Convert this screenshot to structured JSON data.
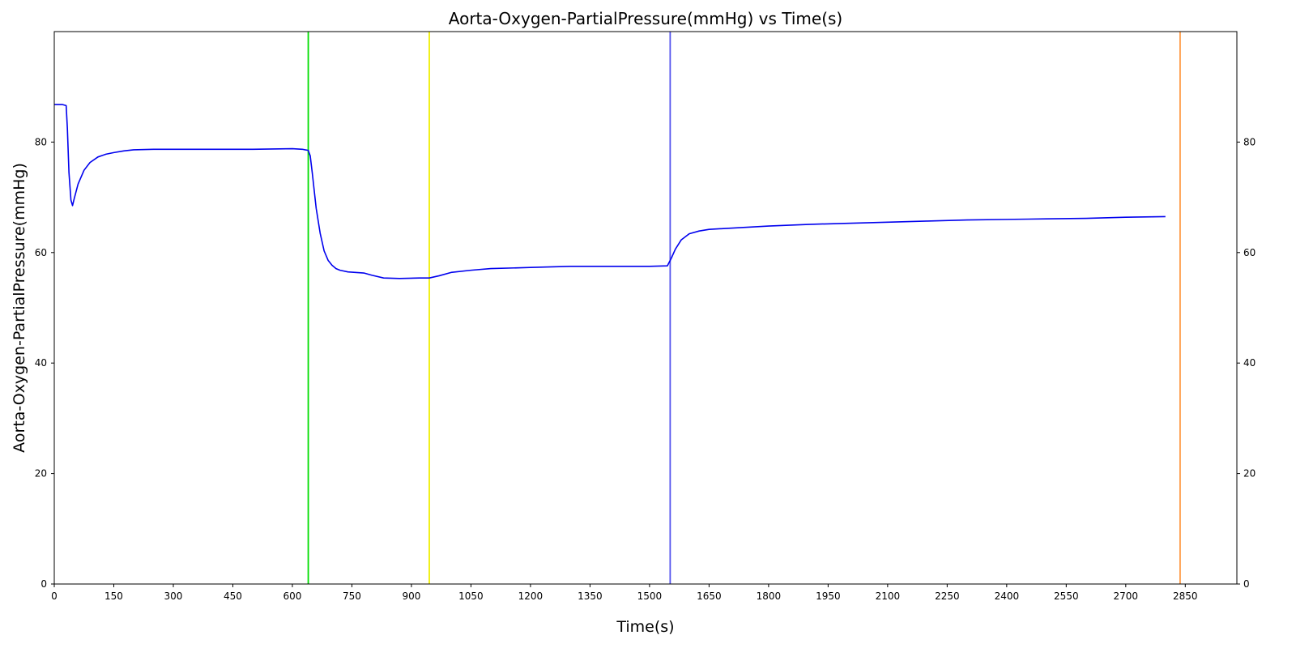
{
  "chart_data": {
    "type": "line",
    "title": "Aorta-Oxygen-PartialPressure(mmHg) vs Time(s)",
    "xlabel": "Time(s)",
    "ylabel": "Aorta-Oxygen-PartialPressure(mmHg)",
    "xlim": [
      0,
      2980
    ],
    "ylim": [
      0,
      100
    ],
    "x_ticks": [
      0,
      150,
      300,
      450,
      600,
      750,
      900,
      1050,
      1200,
      1350,
      1500,
      1650,
      1800,
      1950,
      2100,
      2250,
      2400,
      2550,
      2700,
      2850
    ],
    "y_ticks": [
      0,
      20,
      40,
      60,
      80
    ],
    "right_y_ticks": [
      0,
      20,
      40,
      60,
      80
    ],
    "grid": false,
    "legend": "none",
    "series": [
      {
        "color": "#0000ee",
        "x": [
          0,
          20,
          30,
          33,
          37,
          42,
          46,
          50,
          60,
          75,
          90,
          110,
          130,
          150,
          175,
          200,
          250,
          300,
          400,
          500,
          600,
          625,
          632,
          640,
          645,
          650,
          660,
          670,
          680,
          690,
          700,
          710,
          720,
          740,
          780,
          800,
          830,
          870,
          920,
          945,
          970,
          1000,
          1050,
          1100,
          1200,
          1300,
          1400,
          1500,
          1545,
          1555,
          1565,
          1580,
          1600,
          1625,
          1650,
          1700,
          1800,
          1900,
          2000,
          2100,
          2200,
          2300,
          2400,
          2500,
          2600,
          2700,
          2800
        ],
        "y": [
          86.8,
          86.8,
          86.6,
          82.5,
          74.5,
          69.5,
          68.5,
          69.7,
          72.4,
          74.9,
          76.3,
          77.3,
          77.8,
          78.1,
          78.4,
          78.6,
          78.7,
          78.7,
          78.7,
          78.7,
          78.8,
          78.7,
          78.6,
          78.5,
          77.5,
          74.5,
          68.0,
          63.5,
          60.3,
          58.6,
          57.7,
          57.1,
          56.8,
          56.5,
          56.3,
          55.9,
          55.4,
          55.3,
          55.4,
          55.4,
          55.8,
          56.4,
          56.8,
          57.1,
          57.3,
          57.5,
          57.5,
          57.5,
          57.6,
          59.0,
          60.6,
          62.3,
          63.4,
          63.9,
          64.2,
          64.4,
          64.8,
          65.1,
          65.3,
          65.5,
          65.7,
          65.9,
          66.0,
          66.1,
          66.2,
          66.4,
          66.5
        ]
      }
    ],
    "markers": [
      {
        "x": 640,
        "color": "#00dd00"
      },
      {
        "x": 945,
        "color": "#eeee00"
      },
      {
        "x": 1552,
        "color": "#5555ee"
      },
      {
        "x": 2837,
        "color": "#ff9944"
      }
    ]
  }
}
